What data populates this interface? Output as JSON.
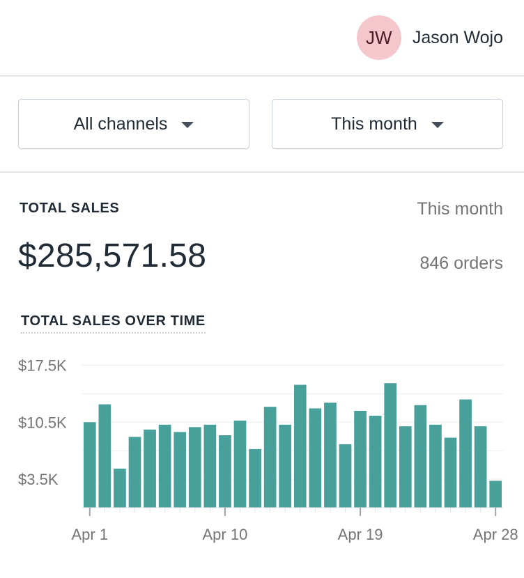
{
  "user": {
    "initials": "JW",
    "name": "Jason Wojo",
    "avatar_color": "#f4c7cd"
  },
  "filters": {
    "channel": "All channels",
    "period": "This month"
  },
  "card": {
    "title": "TOTAL SALES",
    "period": "This month",
    "total": "$285,571.58",
    "orders": "846 orders",
    "chart_title": "TOTAL SALES OVER TIME"
  },
  "chart_data": {
    "type": "bar",
    "color": "#47a09a",
    "categories": [
      "Apr 1",
      "Apr 2",
      "Apr 3",
      "Apr 4",
      "Apr 5",
      "Apr 6",
      "Apr 7",
      "Apr 8",
      "Apr 9",
      "Apr 10",
      "Apr 11",
      "Apr 12",
      "Apr 13",
      "Apr 14",
      "Apr 15",
      "Apr 16",
      "Apr 17",
      "Apr 18",
      "Apr 19",
      "Apr 20",
      "Apr 21",
      "Apr 22",
      "Apr 23",
      "Apr 24",
      "Apr 25",
      "Apr 26",
      "Apr 27",
      "Apr 28"
    ],
    "values": [
      10.5,
      12.7,
      4.8,
      8.7,
      9.6,
      10.2,
      9.3,
      9.9,
      10.2,
      8.9,
      10.7,
      7.2,
      12.4,
      10.2,
      15.1,
      12.2,
      12.9,
      7.8,
      11.9,
      11.3,
      15.3,
      10.0,
      12.6,
      10.2,
      8.6,
      13.3,
      10.0,
      3.3
    ],
    "yticks": [
      3.5,
      10.5,
      17.5
    ],
    "ytick_labels": [
      "$3.5K",
      "$10.5K",
      "$17.5K"
    ],
    "xtick_labels": [
      "Apr 1",
      "Apr 10",
      "Apr 19",
      "Apr 28"
    ],
    "xtick_days": [
      1,
      10,
      19,
      28
    ],
    "ylim": [
      0,
      19
    ],
    "grid": true
  }
}
